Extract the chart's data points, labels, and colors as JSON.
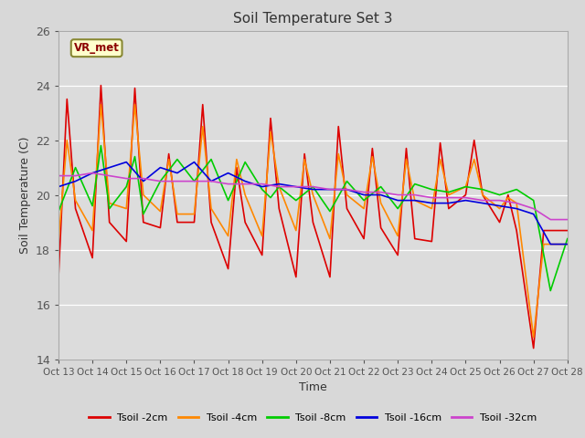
{
  "title": "Soil Temperature Set 3",
  "xlabel": "Time",
  "ylabel": "Soil Temperature (C)",
  "ylim": [
    14,
    26
  ],
  "fig_bg_color": "#d8d8d8",
  "plot_bg_color": "#dcdcdc",
  "annotation_text": "VR_met",
  "x_tick_labels": [
    "Oct 13",
    "Oct 14",
    "Oct 15",
    "Oct 16",
    "Oct 17",
    "Oct 18",
    "Oct 19",
    "Oct 20",
    "Oct 21",
    "Oct 22",
    "Oct 23",
    "Oct 24",
    "Oct 25",
    "Oct 26",
    "Oct 27",
    "Oct 28"
  ],
  "series": {
    "Tsoil -2cm": {
      "color": "#dd0000",
      "x": [
        0,
        0.25,
        0.5,
        1.0,
        1.25,
        1.5,
        2.0,
        2.25,
        2.5,
        3.0,
        3.25,
        3.5,
        4.0,
        4.25,
        4.5,
        5.0,
        5.25,
        5.5,
        6.0,
        6.25,
        6.5,
        7.0,
        7.25,
        7.5,
        8.0,
        8.25,
        8.5,
        9.0,
        9.25,
        9.5,
        10.0,
        10.25,
        10.5,
        11.0,
        11.25,
        11.5,
        12.0,
        12.25,
        12.5,
        13.0,
        13.25,
        13.5,
        14.0,
        14.3,
        14.5,
        15.0
      ],
      "y": [
        17.0,
        23.5,
        19.5,
        17.7,
        24.0,
        19.0,
        18.3,
        23.9,
        19.0,
        18.8,
        21.5,
        19.0,
        19.0,
        23.3,
        19.0,
        17.3,
        21.0,
        19.0,
        17.8,
        22.8,
        19.5,
        17.0,
        21.5,
        19.0,
        17.0,
        22.5,
        19.5,
        18.4,
        21.7,
        18.8,
        17.8,
        21.7,
        18.4,
        18.3,
        21.9,
        19.5,
        20.0,
        22.0,
        20.0,
        19.0,
        20.0,
        18.7,
        14.4,
        18.7,
        18.7,
        18.7
      ]
    },
    "Tsoil -4cm": {
      "color": "#ff8800",
      "x": [
        0,
        0.25,
        0.5,
        1.0,
        1.25,
        1.5,
        2.0,
        2.25,
        2.5,
        3.0,
        3.25,
        3.5,
        4.0,
        4.25,
        4.5,
        5.0,
        5.25,
        5.5,
        6.0,
        6.25,
        6.5,
        7.0,
        7.25,
        7.5,
        8.0,
        8.25,
        8.5,
        9.0,
        9.25,
        9.5,
        10.0,
        10.25,
        10.5,
        11.0,
        11.25,
        11.5,
        12.0,
        12.25,
        12.5,
        13.0,
        13.25,
        13.5,
        14.0,
        14.3,
        14.5,
        15.0
      ],
      "y": [
        18.3,
        22.0,
        19.8,
        18.7,
        23.3,
        19.7,
        19.5,
        23.3,
        20.0,
        19.4,
        21.3,
        19.3,
        19.3,
        22.5,
        19.5,
        18.5,
        21.3,
        20.0,
        18.5,
        22.3,
        20.3,
        18.7,
        21.3,
        20.0,
        18.4,
        21.5,
        20.0,
        19.5,
        21.4,
        19.7,
        18.5,
        21.3,
        19.8,
        19.5,
        21.3,
        20.0,
        20.3,
        21.3,
        20.0,
        19.5,
        19.9,
        19.7,
        14.8,
        18.2,
        18.2,
        18.2
      ]
    },
    "Tsoil -8cm": {
      "color": "#00cc00",
      "x": [
        0,
        0.5,
        1.0,
        1.25,
        1.5,
        2.0,
        2.25,
        2.5,
        3.0,
        3.5,
        4.0,
        4.5,
        5.0,
        5.5,
        6.0,
        6.25,
        6.5,
        7.0,
        7.5,
        8.0,
        8.5,
        9.0,
        9.5,
        10.0,
        10.5,
        11.0,
        11.5,
        12.0,
        12.5,
        13.0,
        13.5,
        14.0,
        14.5,
        15.0
      ],
      "y": [
        19.4,
        21.0,
        19.6,
        21.8,
        19.5,
        20.3,
        21.4,
        19.3,
        20.5,
        21.3,
        20.5,
        21.3,
        19.8,
        21.2,
        20.2,
        19.9,
        20.3,
        19.8,
        20.3,
        19.4,
        20.5,
        19.8,
        20.3,
        19.5,
        20.4,
        20.2,
        20.1,
        20.3,
        20.2,
        20.0,
        20.2,
        19.8,
        16.5,
        18.4
      ]
    },
    "Tsoil -16cm": {
      "color": "#0000dd",
      "x": [
        0,
        0.5,
        1.0,
        1.5,
        2.0,
        2.5,
        3.0,
        3.5,
        4.0,
        4.5,
        5.0,
        5.5,
        6.0,
        6.5,
        7.0,
        7.5,
        8.0,
        8.5,
        9.0,
        9.5,
        10.0,
        10.5,
        11.0,
        11.5,
        12.0,
        12.5,
        13.0,
        13.5,
        14.0,
        14.5,
        15.0
      ],
      "y": [
        20.3,
        20.5,
        20.8,
        21.0,
        21.2,
        20.5,
        21.0,
        20.8,
        21.2,
        20.5,
        20.8,
        20.5,
        20.3,
        20.4,
        20.3,
        20.2,
        20.2,
        20.2,
        20.0,
        20.0,
        19.8,
        19.8,
        19.7,
        19.7,
        19.8,
        19.7,
        19.6,
        19.5,
        19.3,
        18.2,
        18.2
      ]
    },
    "Tsoil -32cm": {
      "color": "#cc44cc",
      "x": [
        0,
        0.5,
        1.0,
        1.5,
        2.0,
        2.5,
        3.0,
        3.5,
        4.0,
        4.5,
        5.0,
        5.5,
        6.0,
        6.5,
        7.0,
        7.5,
        8.0,
        8.5,
        9.0,
        9.5,
        10.0,
        10.5,
        11.0,
        11.5,
        12.0,
        12.5,
        13.0,
        13.5,
        14.0,
        14.5,
        15.0
      ],
      "y": [
        20.7,
        20.7,
        20.8,
        20.7,
        20.6,
        20.6,
        20.5,
        20.5,
        20.5,
        20.5,
        20.4,
        20.4,
        20.4,
        20.3,
        20.3,
        20.3,
        20.2,
        20.2,
        20.1,
        20.1,
        20.0,
        20.0,
        19.9,
        19.9,
        19.9,
        19.8,
        19.8,
        19.7,
        19.5,
        19.1,
        19.1
      ]
    }
  }
}
